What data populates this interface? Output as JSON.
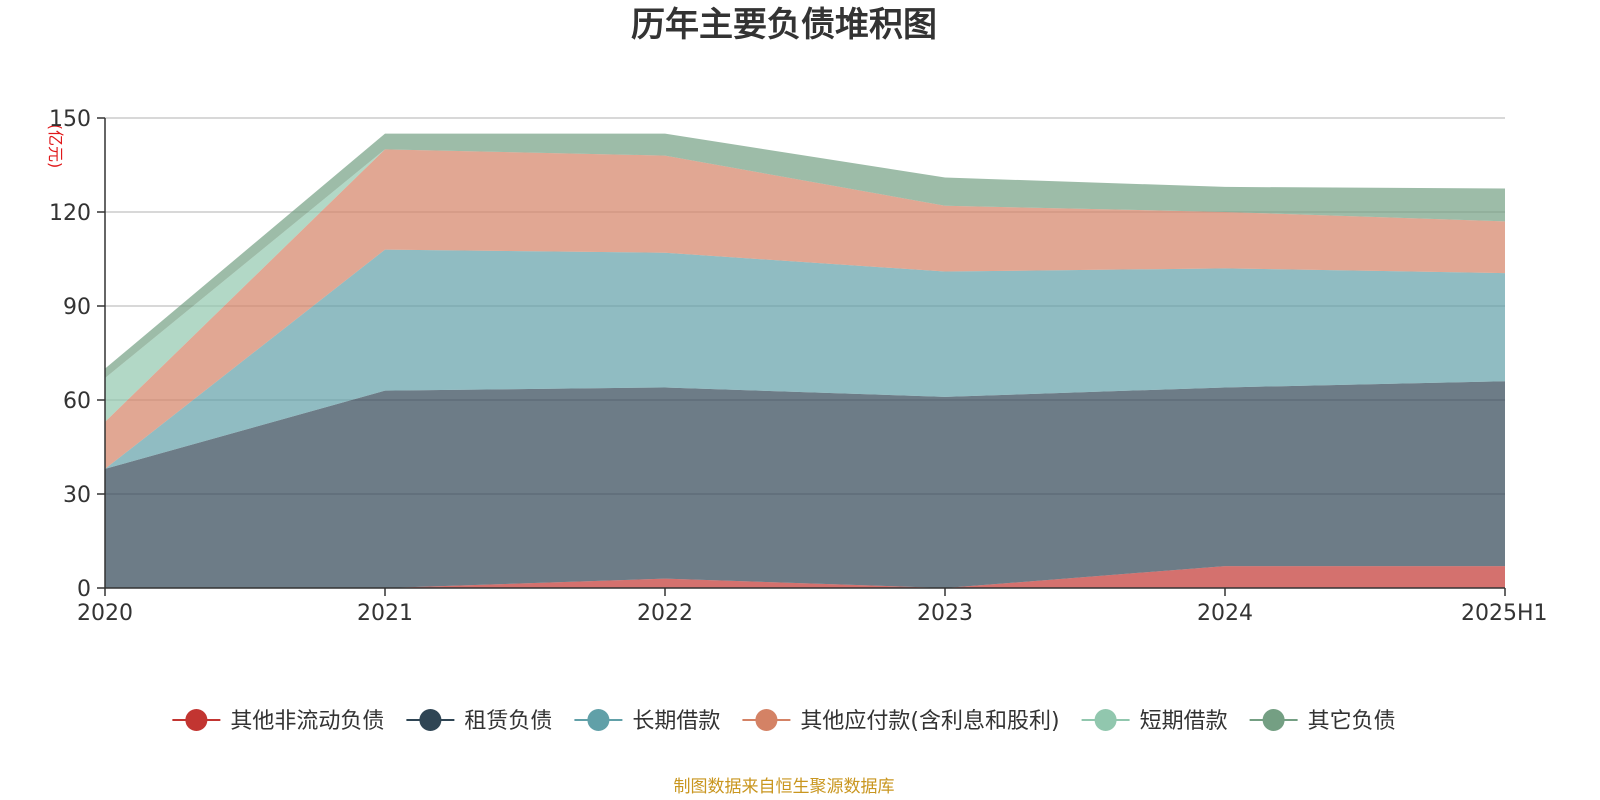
{
  "chart_data": {
    "type": "area",
    "stacked": true,
    "title": "历年主要负债堆积图",
    "unit_label": "(亿元)",
    "categories": [
      "2020",
      "2021",
      "2022",
      "2023",
      "2024",
      "2025H1"
    ],
    "ylim": [
      0,
      150
    ],
    "yticks": [
      0,
      30,
      60,
      90,
      120,
      150
    ],
    "grid": true,
    "legend_position": "bottom",
    "series": [
      {
        "name": "其他非流动负债",
        "color": "#c23531",
        "values": [
          0,
          0,
          3,
          0,
          7,
          7
        ]
      },
      {
        "name": "租赁负债",
        "color": "#2f4554",
        "values": [
          38,
          63,
          61,
          61,
          57,
          59
        ]
      },
      {
        "name": "长期借款",
        "color": "#61a0a8",
        "values": [
          0,
          45,
          43,
          40,
          38,
          34.5
        ]
      },
      {
        "name": "其他应付款(含利息和股利)",
        "color": "#d48265",
        "values": [
          15,
          32,
          31,
          21,
          18,
          16.5
        ]
      },
      {
        "name": "短期借款",
        "color": "#91c7ae",
        "values": [
          14,
          0,
          0,
          0,
          0,
          0
        ]
      },
      {
        "name": "其它负债",
        "color": "#749f83",
        "values": [
          3,
          5,
          7,
          9,
          8,
          10.5
        ]
      }
    ]
  },
  "source_note": "制图数据来自恒生聚源数据库"
}
